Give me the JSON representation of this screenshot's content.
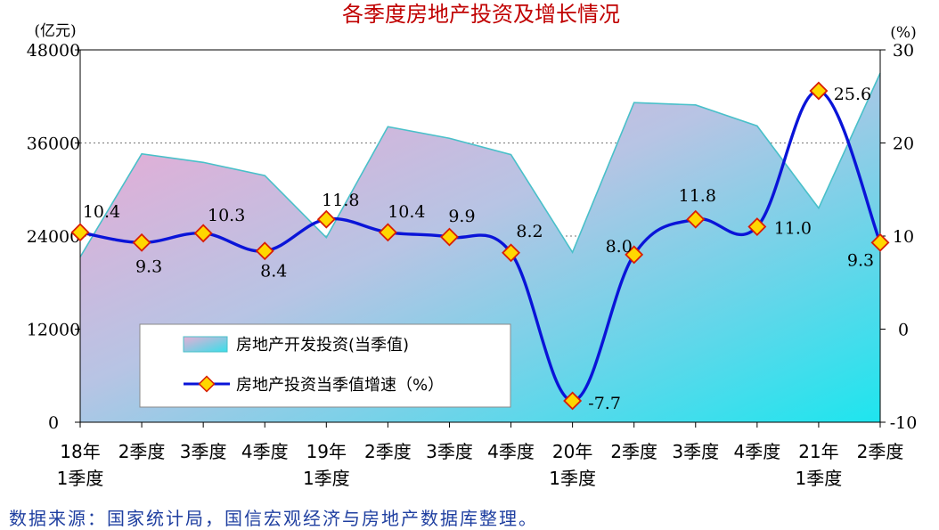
{
  "chart_data": {
    "type": "area-line",
    "title": "各季度房地产投资及增长情况",
    "left_axis_unit": "(亿元)",
    "right_axis_unit": "(%)",
    "left_ylim": [
      0,
      48000
    ],
    "left_ticks": [
      "0",
      "12000",
      "24000",
      "36000",
      "48000"
    ],
    "right_ylim": [
      -10,
      30
    ],
    "right_ticks": [
      "-10",
      "0",
      "10",
      "20",
      "30"
    ],
    "categories": [
      [
        "18年",
        "1季度"
      ],
      [
        "2季度"
      ],
      [
        "3季度"
      ],
      [
        "4季度"
      ],
      [
        "19年",
        "1季度"
      ],
      [
        "2季度"
      ],
      [
        "3季度"
      ],
      [
        "4季度"
      ],
      [
        "20年",
        "1季度"
      ],
      [
        "2季度"
      ],
      [
        "3季度"
      ],
      [
        "4季度"
      ],
      [
        "21年",
        "1季度"
      ],
      [
        "2季度"
      ]
    ],
    "series": [
      {
        "name": "房地产开发投资(当季值)",
        "axis": "left",
        "type": "area",
        "values": [
          21300,
          34600,
          33500,
          31800,
          23800,
          38100,
          36600,
          34500,
          21900,
          41200,
          40900,
          38200,
          27600,
          45000
        ]
      },
      {
        "name": "房地产投资当季值增速（%）",
        "axis": "right",
        "type": "line",
        "values": [
          10.4,
          9.3,
          10.3,
          8.4,
          11.8,
          10.4,
          9.9,
          8.2,
          -7.7,
          8.0,
          11.8,
          11.0,
          25.6,
          9.3
        ],
        "labels": [
          "10.4",
          "9.3",
          "10.3",
          "8.4",
          "11.8",
          "10.4",
          "9.9",
          "8.2",
          "-7.7",
          "8.0",
          "11.8",
          "11.0",
          "25.6",
          "9.3"
        ]
      }
    ],
    "legend_position": "bottom-left inside plot",
    "grid": "dotted horizontal at 36000 and 24000"
  },
  "source_note": "数据来源：国家统计局，国信宏观经济与房地产数据库整理。",
  "colors": {
    "title": "#c00000",
    "line": "#0a14d8",
    "marker_fill": "#ffd700",
    "marker_stroke": "#d81e06",
    "area_edge": "#49c0c9",
    "source_text": "#1f3fa0"
  }
}
